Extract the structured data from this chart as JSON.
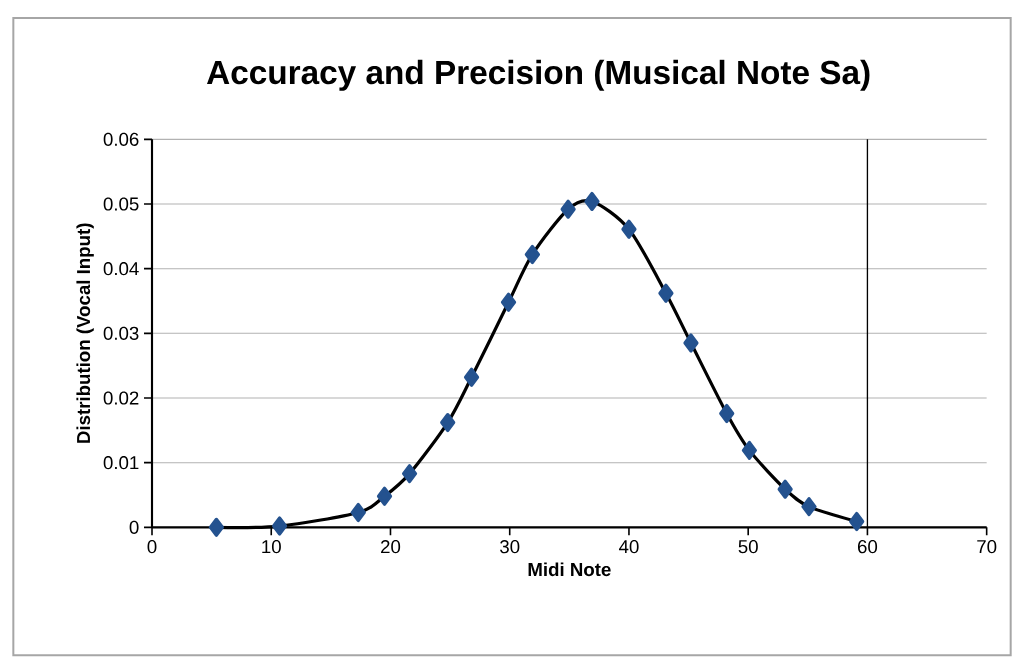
{
  "chart_data": {
    "type": "line",
    "title": "Accuracy and Precision (Musical Note Sa)",
    "xlabel": "Midi Note",
    "ylabel": "Distribution (Vocal Input)",
    "x": [
      5.4,
      10.7,
      17.3,
      19.5,
      21.6,
      24.8,
      26.8,
      29.9,
      31.9,
      34.9,
      36.9,
      40.0,
      43.1,
      45.2,
      48.2,
      50.1,
      53.1,
      55.1,
      59.1
    ],
    "series": [
      {
        "color": "#24528f",
        "values": [
          0,
          0.0002,
          0.0023,
          0.0048,
          0.0083,
          0.0162,
          0.0232,
          0.0348,
          0.0422,
          0.0492,
          0.0504,
          0.0461,
          0.0362,
          0.0285,
          0.0176,
          0.0119,
          0.0059,
          0.0032,
          0.0009
        ]
      }
    ],
    "xlim": [
      0,
      70
    ],
    "xticks": [
      0,
      10,
      20,
      30,
      40,
      50,
      60,
      70
    ],
    "ylim": [
      0,
      0.06
    ],
    "yticks": [
      0,
      {
        "value": 0.01,
        "label": "0.01"
      },
      {
        "value": 0.02,
        "label": "0.02"
      },
      {
        "value": 0.03,
        "label": "0.03"
      },
      {
        "value": 0.04,
        "label": "0.04"
      },
      {
        "value": 0.05,
        "label": "0.05"
      },
      {
        "value": 0.06,
        "label": "0.06"
      }
    ],
    "ref_lines": [
      {
        "axis": "x",
        "value": 60,
        "color": "#000000"
      }
    ],
    "grid": "y",
    "marker": "diamond",
    "line_style": "solid"
  }
}
